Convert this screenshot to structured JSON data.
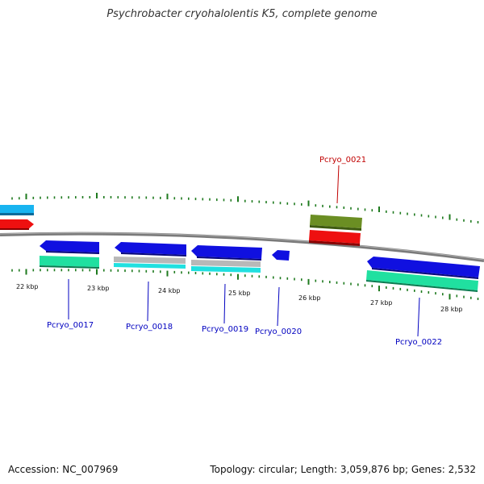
{
  "title": "Psychrobacter cryohalolentis K5, complete genome",
  "footer": {
    "accession": "Accession: NC_007969",
    "summary": "Topology: circular; Length: 3,059,876 bp; Genes: 2,532"
  },
  "colors": {
    "blue": "#1010e0",
    "teal": "#20e0a0",
    "cyan": "#20e0e0",
    "gray": "#b8b8b8",
    "red": "#ee1010",
    "olive": "#6b8e23",
    "sky": "#18b4f0",
    "tick": "#1e7a1e",
    "label_blue": "#0000c0",
    "label_red": "#c00000"
  },
  "kbp_labels": [
    "22 kbp",
    "23 kbp",
    "24 kbp",
    "25 kbp",
    "26 kbp",
    "27 kbp",
    "28 kbp"
  ],
  "gene_labels": [
    {
      "id": "Pcryo_0017",
      "color": "label_blue"
    },
    {
      "id": "Pcryo_0018",
      "color": "label_blue"
    },
    {
      "id": "Pcryo_0019",
      "color": "label_blue"
    },
    {
      "id": "Pcryo_0020",
      "color": "label_blue"
    },
    {
      "id": "Pcryo_0021",
      "color": "label_red"
    },
    {
      "id": "Pcryo_0022",
      "color": "label_blue"
    }
  ]
}
